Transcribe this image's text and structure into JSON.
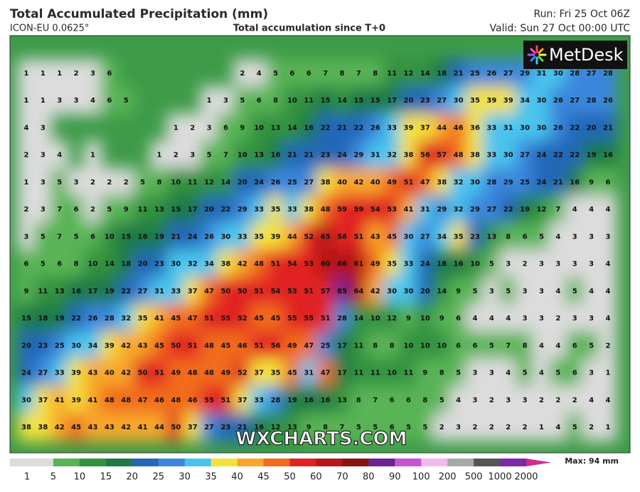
{
  "header": {
    "title": "Total Accumulated Precipitation (mm)",
    "model": "ICON-EU 0.0625°",
    "subtitle": "Total accumulation since T+0",
    "run": "Run: Fri 25 Oct 06Z",
    "valid": "Valid: Sun 27 Oct 00:00 UTC"
  },
  "logo": "MetDesk",
  "watermark": "WXCHARTS.COM",
  "grid": {
    "rows": [
      [
        1,
        1,
        1,
        2,
        3,
        6,
        null,
        null,
        null,
        null,
        null,
        null,
        null,
        2,
        4,
        5,
        6,
        6,
        7,
        8,
        7,
        8,
        11,
        12,
        14,
        18,
        21,
        25,
        26,
        27,
        29,
        31,
        30,
        28,
        27,
        28
      ],
      [
        1,
        1,
        3,
        3,
        4,
        6,
        5,
        null,
        null,
        null,
        null,
        1,
        3,
        5,
        6,
        8,
        10,
        11,
        15,
        14,
        15,
        15,
        17,
        20,
        23,
        27,
        30,
        35,
        39,
        39,
        34,
        30,
        26,
        27,
        28,
        26
      ],
      [
        4,
        3,
        null,
        null,
        null,
        null,
        null,
        null,
        null,
        1,
        2,
        3,
        6,
        9,
        10,
        13,
        14,
        16,
        22,
        21,
        22,
        26,
        33,
        39,
        37,
        44,
        46,
        36,
        33,
        31,
        30,
        30,
        26,
        22,
        20,
        21
      ],
      [
        2,
        3,
        4,
        null,
        1,
        null,
        null,
        null,
        1,
        2,
        3,
        5,
        7,
        10,
        13,
        16,
        21,
        21,
        23,
        24,
        29,
        31,
        32,
        38,
        56,
        57,
        48,
        38,
        33,
        30,
        27,
        24,
        22,
        22,
        19,
        16
      ],
      [
        1,
        3,
        5,
        3,
        2,
        2,
        2,
        5,
        8,
        10,
        11,
        12,
        14,
        20,
        24,
        26,
        25,
        27,
        38,
        40,
        42,
        40,
        49,
        51,
        47,
        38,
        32,
        30,
        28,
        29,
        25,
        24,
        21,
        16,
        9,
        6
      ],
      [
        2,
        3,
        7,
        6,
        2,
        5,
        9,
        11,
        13,
        15,
        17,
        20,
        22,
        29,
        33,
        35,
        33,
        38,
        48,
        59,
        59,
        54,
        53,
        41,
        31,
        29,
        32,
        29,
        27,
        22,
        19,
        12,
        7,
        4,
        4,
        4
      ],
      [
        3,
        5,
        7,
        5,
        6,
        10,
        15,
        16,
        19,
        21,
        24,
        26,
        30,
        33,
        35,
        39,
        44,
        52,
        65,
        56,
        51,
        43,
        45,
        30,
        27,
        34,
        35,
        23,
        13,
        8,
        6,
        5,
        4,
        3,
        3,
        3
      ],
      [
        6,
        5,
        6,
        8,
        10,
        14,
        18,
        20,
        23,
        30,
        32,
        34,
        38,
        42,
        48,
        51,
        54,
        53,
        60,
        66,
        61,
        49,
        35,
        33,
        24,
        18,
        16,
        10,
        5,
        3,
        2,
        3,
        3,
        3,
        3,
        4
      ],
      [
        9,
        11,
        13,
        16,
        17,
        19,
        22,
        27,
        31,
        33,
        37,
        47,
        50,
        50,
        51,
        54,
        53,
        51,
        57,
        85,
        64,
        42,
        30,
        30,
        20,
        14,
        9,
        5,
        3,
        5,
        3,
        3,
        4,
        5,
        4,
        4
      ],
      [
        15,
        18,
        19,
        22,
        26,
        28,
        32,
        35,
        41,
        45,
        47,
        51,
        55,
        52,
        45,
        45,
        55,
        55,
        51,
        28,
        14,
        10,
        12,
        9,
        10,
        9,
        6,
        4,
        4,
        4,
        3,
        3,
        2,
        3,
        3,
        4
      ],
      [
        20,
        23,
        25,
        30,
        34,
        39,
        42,
        43,
        45,
        50,
        51,
        48,
        45,
        46,
        51,
        56,
        49,
        47,
        25,
        17,
        11,
        8,
        8,
        10,
        10,
        10,
        6,
        6,
        5,
        7,
        8,
        4,
        4,
        6,
        5,
        2
      ],
      [
        24,
        27,
        33,
        39,
        43,
        40,
        42,
        50,
        51,
        49,
        48,
        48,
        49,
        52,
        37,
        35,
        45,
        31,
        47,
        17,
        11,
        11,
        10,
        11,
        9,
        8,
        5,
        3,
        3,
        4,
        5,
        4,
        5,
        6,
        3,
        1
      ],
      [
        30,
        37,
        41,
        39,
        41,
        48,
        48,
        47,
        46,
        48,
        46,
        55,
        51,
        37,
        33,
        28,
        19,
        16,
        16,
        13,
        8,
        7,
        6,
        6,
        8,
        5,
        4,
        3,
        2,
        3,
        3,
        2,
        2,
        2,
        4,
        4
      ],
      [
        38,
        38,
        42,
        45,
        43,
        43,
        42,
        41,
        44,
        50,
        37,
        27,
        23,
        21,
        16,
        12,
        13,
        9,
        8,
        7,
        5,
        5,
        6,
        5,
        5,
        2,
        3,
        2,
        2,
        2,
        2,
        1,
        4,
        5,
        2,
        1
      ]
    ]
  },
  "legend": {
    "ticks": [
      1,
      5,
      10,
      15,
      20,
      25,
      30,
      35,
      40,
      45,
      50,
      60,
      70,
      80,
      90,
      100,
      200,
      500,
      1000,
      2000
    ],
    "colors": [
      "#dcdcdc",
      "#58b455",
      "#33923f",
      "#1f7a45",
      "#2467b8",
      "#3b86dc",
      "#48c4ee",
      "#f4e23a",
      "#f8a72a",
      "#f26c1e",
      "#e12222",
      "#b41818",
      "#861212",
      "#6c2494",
      "#c454d2",
      "#f2b8f0",
      "#a8a8a8",
      "#555555",
      "#7a2aa8"
    ],
    "max": "Max: 94 mm"
  }
}
